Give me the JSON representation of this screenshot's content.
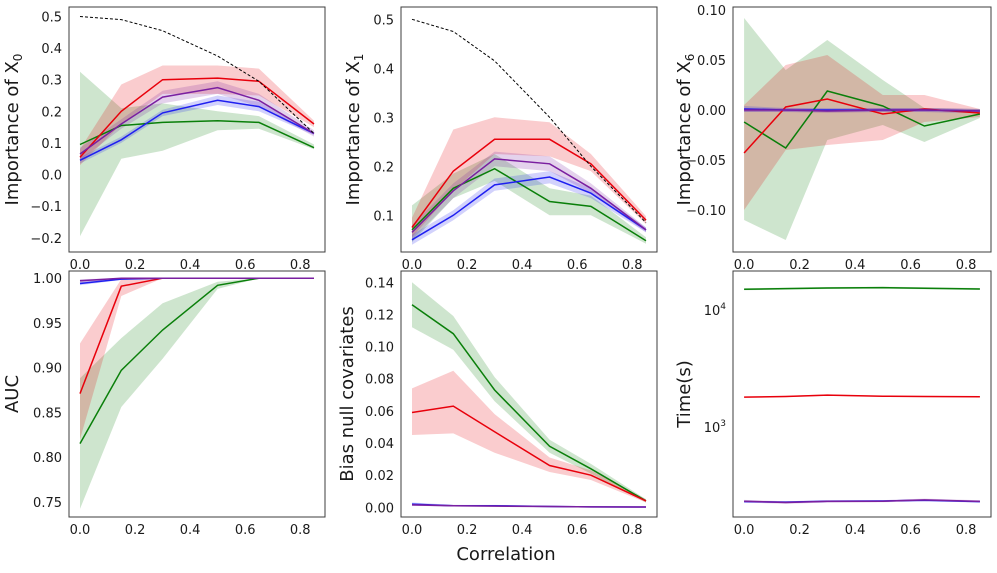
{
  "figure": {
    "xlabel": "Correlation"
  },
  "colors": {
    "red": "#e8000b",
    "green": "#0a7f0a",
    "blue": "#1f1ff0",
    "purple": "#7a1fa0",
    "dashed": "#000000"
  },
  "chart_data": [
    {
      "type": "line",
      "ylabel": "Importance of X",
      "ylabel_sub": "0",
      "x": [
        0.0,
        0.15,
        0.3,
        0.5,
        0.65,
        0.85
      ],
      "xlim": [
        -0.04,
        0.89
      ],
      "ylim": [
        -0.245,
        0.53
      ],
      "yscale": "linear",
      "xticks": [
        0.0,
        0.2,
        0.4,
        0.6,
        0.8
      ],
      "xtick_labels": [
        "0.0",
        "0.2",
        "0.4",
        "0.6",
        "0.8"
      ],
      "yticks": [
        -0.2,
        -0.1,
        0.0,
        0.1,
        0.2,
        0.3,
        0.4,
        0.5
      ],
      "ytick_labels": [
        "−0.2",
        "−0.1",
        "0.0",
        "0.1",
        "0.2",
        "0.3",
        "0.4",
        "0.5"
      ],
      "series": [
        {
          "name": "green",
          "color": "green",
          "values": [
            0.095,
            0.155,
            0.165,
            0.17,
            0.165,
            0.085
          ],
          "lower": [
            -0.195,
            0.05,
            0.075,
            0.14,
            0.145,
            0.08
          ],
          "upper": [
            0.325,
            0.21,
            0.225,
            0.2,
            0.185,
            0.095
          ]
        },
        {
          "name": "red",
          "color": "red",
          "values": [
            0.055,
            0.2,
            0.3,
            0.305,
            0.295,
            0.16
          ],
          "lower": [
            0.03,
            0.16,
            0.255,
            0.255,
            0.25,
            0.15
          ],
          "upper": [
            0.08,
            0.285,
            0.345,
            0.345,
            0.335,
            0.17
          ]
        },
        {
          "name": "blue",
          "color": "blue",
          "values": [
            0.045,
            0.11,
            0.195,
            0.235,
            0.215,
            0.13
          ],
          "lower": [
            0.035,
            0.1,
            0.185,
            0.22,
            0.2,
            0.125
          ],
          "upper": [
            0.055,
            0.12,
            0.205,
            0.25,
            0.23,
            0.135
          ]
        },
        {
          "name": "purple",
          "color": "purple",
          "values": [
            0.065,
            0.16,
            0.245,
            0.275,
            0.235,
            0.13
          ],
          "lower": [
            0.045,
            0.145,
            0.225,
            0.255,
            0.215,
            0.12
          ],
          "upper": [
            0.085,
            0.175,
            0.265,
            0.295,
            0.255,
            0.14
          ]
        },
        {
          "name": "reference",
          "color": "dashed",
          "dashed": true,
          "values": [
            0.5,
            0.49,
            0.455,
            0.375,
            0.295,
            0.13
          ]
        }
      ]
    },
    {
      "type": "line",
      "ylabel": "Importance of X",
      "ylabel_sub": "1",
      "x": [
        0.0,
        0.15,
        0.3,
        0.5,
        0.65,
        0.85
      ],
      "xlim": [
        -0.04,
        0.89
      ],
      "ylim": [
        0.025,
        0.525
      ],
      "yscale": "linear",
      "xticks": [
        0.0,
        0.2,
        0.4,
        0.6,
        0.8
      ],
      "xtick_labels": [
        "0.0",
        "0.2",
        "0.4",
        "0.6",
        "0.8"
      ],
      "yticks": [
        0.1,
        0.2,
        0.3,
        0.4,
        0.5
      ],
      "ytick_labels": [
        "0.1",
        "0.2",
        "0.3",
        "0.4",
        "0.5"
      ],
      "series": [
        {
          "name": "green",
          "color": "green",
          "values": [
            0.07,
            0.155,
            0.195,
            0.128,
            0.118,
            0.048
          ],
          "lower": [
            0.045,
            0.135,
            0.17,
            0.1,
            0.1,
            0.042
          ],
          "upper": [
            0.12,
            0.185,
            0.225,
            0.155,
            0.14,
            0.055
          ]
        },
        {
          "name": "red",
          "color": "red",
          "values": [
            0.075,
            0.19,
            0.255,
            0.255,
            0.205,
            0.09
          ],
          "lower": [
            0.055,
            0.15,
            0.225,
            0.22,
            0.19,
            0.082
          ],
          "upper": [
            0.095,
            0.275,
            0.3,
            0.29,
            0.225,
            0.098
          ]
        },
        {
          "name": "blue",
          "color": "blue",
          "values": [
            0.05,
            0.1,
            0.162,
            0.178,
            0.145,
            0.07
          ],
          "lower": [
            0.04,
            0.09,
            0.15,
            0.165,
            0.135,
            0.065
          ],
          "upper": [
            0.06,
            0.11,
            0.175,
            0.19,
            0.155,
            0.075
          ]
        },
        {
          "name": "purple",
          "color": "purple",
          "values": [
            0.065,
            0.15,
            0.215,
            0.205,
            0.155,
            0.07
          ],
          "lower": [
            0.05,
            0.135,
            0.2,
            0.19,
            0.145,
            0.065
          ],
          "upper": [
            0.08,
            0.165,
            0.23,
            0.22,
            0.165,
            0.075
          ]
        },
        {
          "name": "reference",
          "color": "dashed",
          "dashed": true,
          "values": [
            0.5,
            0.475,
            0.415,
            0.3,
            0.2,
            0.085
          ]
        }
      ]
    },
    {
      "type": "line",
      "ylabel": "Importance of X",
      "ylabel_sub": "6",
      "x": [
        0.0,
        0.15,
        0.3,
        0.5,
        0.65,
        0.85
      ],
      "xlim": [
        -0.04,
        0.89
      ],
      "ylim": [
        -0.142,
        0.103
      ],
      "yscale": "linear",
      "xticks": [
        0.0,
        0.2,
        0.4,
        0.6,
        0.8
      ],
      "xtick_labels": [
        "0.0",
        "0.2",
        "0.4",
        "0.6",
        "0.8"
      ],
      "yticks": [
        -0.1,
        -0.05,
        0.0,
        0.05,
        0.1
      ],
      "ytick_labels": [
        "−0.10",
        "−0.05",
        "0.00",
        "0.05",
        "0.10"
      ],
      "series": [
        {
          "name": "green",
          "color": "green",
          "values": [
            -0.012,
            -0.038,
            0.019,
            0.004,
            -0.016,
            -0.004
          ],
          "lower": [
            -0.11,
            -0.13,
            -0.03,
            -0.015,
            -0.032,
            -0.008
          ],
          "upper": [
            0.092,
            0.04,
            0.07,
            0.03,
            0.002,
            0.001
          ]
        },
        {
          "name": "red",
          "color": "red",
          "values": [
            -0.043,
            0.003,
            0.011,
            -0.004,
            0.001,
            -0.003
          ],
          "lower": [
            -0.1,
            -0.04,
            -0.035,
            -0.03,
            -0.012,
            -0.007
          ],
          "upper": [
            0.005,
            0.045,
            0.055,
            0.015,
            0.015,
            0.001
          ]
        },
        {
          "name": "blue",
          "color": "blue",
          "values": [
            0.001,
            0.0,
            0.0,
            0.0,
            0.0,
            -0.001
          ],
          "lower": [
            -0.002,
            -0.002,
            -0.002,
            -0.002,
            -0.002,
            -0.003
          ],
          "upper": [
            0.004,
            0.002,
            0.002,
            0.002,
            0.002,
            0.001
          ]
        },
        {
          "name": "purple",
          "color": "purple",
          "values": [
            0.0,
            0.0,
            -0.001,
            0.0,
            0.0,
            -0.001
          ],
          "lower": [
            -0.002,
            -0.002,
            -0.003,
            -0.002,
            -0.002,
            -0.003
          ],
          "upper": [
            0.002,
            0.002,
            0.001,
            0.002,
            0.002,
            0.001
          ]
        }
      ]
    },
    {
      "type": "line",
      "ylabel": "AUC",
      "x": [
        0.0,
        0.15,
        0.3,
        0.5,
        0.65,
        0.85
      ],
      "xlim": [
        -0.04,
        0.89
      ],
      "ylim": [
        0.733,
        1.008
      ],
      "yscale": "linear",
      "xticks": [
        0.0,
        0.2,
        0.4,
        0.6,
        0.8
      ],
      "xtick_labels": [
        "0.0",
        "0.2",
        "0.4",
        "0.6",
        "0.8"
      ],
      "yticks": [
        0.75,
        0.8,
        0.85,
        0.9,
        0.95,
        1.0
      ],
      "ytick_labels": [
        "0.75",
        "0.80",
        "0.85",
        "0.90",
        "0.95",
        "1.00"
      ],
      "series": [
        {
          "name": "green",
          "color": "green",
          "values": [
            0.815,
            0.897,
            0.942,
            0.992,
            1.0,
            1.0
          ],
          "lower": [
            0.742,
            0.856,
            0.91,
            0.988,
            1.0,
            1.0
          ],
          "upper": [
            0.888,
            0.933,
            0.972,
            0.996,
            1.0,
            1.0
          ]
        },
        {
          "name": "red",
          "color": "red",
          "values": [
            0.871,
            0.991,
            1.0,
            1.0,
            1.0,
            1.0
          ],
          "lower": [
            0.82,
            0.98,
            1.0,
            1.0,
            1.0,
            1.0
          ],
          "upper": [
            0.927,
            0.999,
            1.0,
            1.0,
            1.0,
            1.0
          ]
        },
        {
          "name": "blue",
          "color": "blue",
          "values": [
            0.994,
            0.999,
            1.0,
            1.0,
            1.0,
            1.0
          ],
          "lower": [
            0.992,
            0.998,
            1.0,
            1.0,
            1.0,
            1.0
          ],
          "upper": [
            0.996,
            1.0,
            1.0,
            1.0,
            1.0,
            1.0
          ]
        },
        {
          "name": "purple",
          "color": "purple",
          "values": [
            0.997,
            1.0,
            1.0,
            1.0,
            1.0,
            1.0
          ],
          "lower": [
            0.995,
            0.999,
            1.0,
            1.0,
            1.0,
            1.0
          ],
          "upper": [
            0.999,
            1.0,
            1.0,
            1.0,
            1.0,
            1.0
          ]
        }
      ]
    },
    {
      "type": "line",
      "ylabel": "Bias null covariates",
      "x": [
        0.0,
        0.15,
        0.3,
        0.5,
        0.65,
        0.85
      ],
      "xlim": [
        -0.04,
        0.89
      ],
      "ylim": [
        -0.006,
        0.147
      ],
      "yscale": "linear",
      "xticks": [
        0.0,
        0.2,
        0.4,
        0.6,
        0.8
      ],
      "xtick_labels": [
        "0.0",
        "0.2",
        "0.4",
        "0.6",
        "0.8"
      ],
      "yticks": [
        0.0,
        0.02,
        0.04,
        0.06,
        0.08,
        0.1,
        0.12,
        0.14
      ],
      "ytick_labels": [
        "0.00",
        "0.02",
        "0.04",
        "0.06",
        "0.08",
        "0.10",
        "0.12",
        "0.14"
      ],
      "series": [
        {
          "name": "green",
          "color": "green",
          "values": [
            0.126,
            0.108,
            0.073,
            0.038,
            0.024,
            0.004
          ],
          "lower": [
            0.112,
            0.098,
            0.066,
            0.034,
            0.021,
            0.003
          ],
          "upper": [
            0.14,
            0.119,
            0.081,
            0.042,
            0.027,
            0.005
          ]
        },
        {
          "name": "red",
          "color": "red",
          "values": [
            0.059,
            0.063,
            0.047,
            0.026,
            0.02,
            0.004
          ],
          "lower": [
            0.045,
            0.046,
            0.034,
            0.022,
            0.017,
            0.003
          ],
          "upper": [
            0.074,
            0.085,
            0.058,
            0.031,
            0.023,
            0.005
          ]
        },
        {
          "name": "blue",
          "color": "blue",
          "values": [
            0.002,
            0.001,
            0.001,
            0.0005,
            0.0003,
            0.0002
          ],
          "lower": [
            0.001,
            0.0005,
            0.0005,
            0.0002,
            0.0001,
            0.0
          ],
          "upper": [
            0.003,
            0.0015,
            0.0015,
            0.001,
            0.0006,
            0.0004
          ]
        },
        {
          "name": "purple",
          "color": "purple",
          "values": [
            0.0015,
            0.001,
            0.0008,
            0.0005,
            0.0003,
            0.0002
          ],
          "lower": [
            0.001,
            0.0005,
            0.0004,
            0.0002,
            0.0001,
            0.0
          ],
          "upper": [
            0.002,
            0.0015,
            0.0012,
            0.0008,
            0.0005,
            0.0004
          ]
        }
      ]
    },
    {
      "type": "line",
      "ylabel": "Time(s)",
      "x": [
        0.0,
        0.15,
        0.3,
        0.5,
        0.65,
        0.85
      ],
      "xlim": [
        -0.04,
        0.89
      ],
      "ylim": [
        170,
        21500
      ],
      "yscale": "log",
      "xticks": [
        0.0,
        0.2,
        0.4,
        0.6,
        0.8
      ],
      "xtick_labels": [
        "0.0",
        "0.2",
        "0.4",
        "0.6",
        "0.8"
      ],
      "yticks": [
        1000,
        10000
      ],
      "ytick_base": "10",
      "ytick_exps": [
        "3",
        "4"
      ],
      "series": [
        {
          "name": "green",
          "color": "green",
          "values": [
            15000,
            15200,
            15400,
            15500,
            15300,
            15100
          ],
          "lower": [
            14700,
            14900,
            15100,
            15200,
            15000,
            14800
          ],
          "upper": [
            15300,
            15500,
            15700,
            15800,
            15600,
            15400
          ]
        },
        {
          "name": "red",
          "color": "red",
          "values": [
            1800,
            1820,
            1870,
            1830,
            1820,
            1810
          ],
          "lower": [
            1780,
            1800,
            1845,
            1810,
            1800,
            1790
          ],
          "upper": [
            1820,
            1840,
            1895,
            1850,
            1840,
            1830
          ]
        },
        {
          "name": "blue",
          "color": "blue",
          "values": [
            230,
            228,
            232,
            233,
            236,
            230
          ],
          "lower": [
            226,
            224,
            228,
            229,
            232,
            226
          ],
          "upper": [
            234,
            232,
            236,
            237,
            240,
            234
          ]
        },
        {
          "name": "purple",
          "color": "purple",
          "values": [
            232,
            226,
            231,
            232,
            238,
            231
          ],
          "lower": [
            226,
            220,
            226,
            227,
            232,
            226
          ],
          "upper": [
            238,
            232,
            236,
            237,
            244,
            236
          ]
        }
      ]
    }
  ]
}
